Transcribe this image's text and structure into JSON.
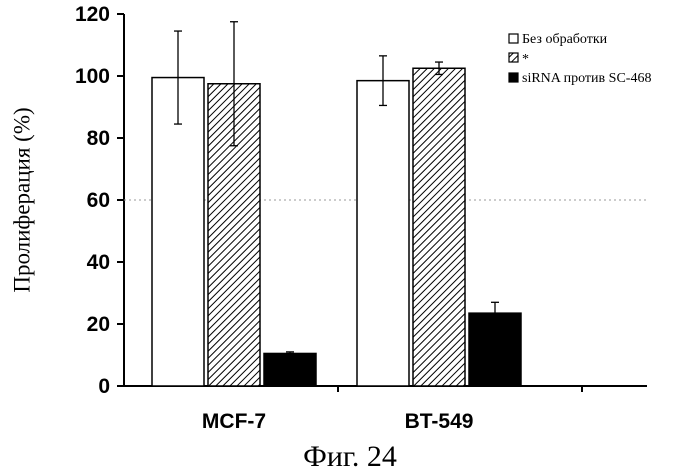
{
  "chart_data": {
    "type": "bar",
    "categories": [
      "MCF-7",
      "BT-549"
    ],
    "series": [
      {
        "name": "Без обработки",
        "values": [
          99.5,
          98.5
        ],
        "errors": [
          15,
          8
        ],
        "fill": "white"
      },
      {
        "name": "*",
        "values": [
          97.5,
          102.5
        ],
        "errors": [
          20,
          2
        ],
        "fill": "hatch"
      },
      {
        "name": "siRNA против SC-468",
        "values": [
          10.5,
          23.5
        ],
        "errors": [
          0.5,
          3.5
        ],
        "fill": "#000000"
      }
    ],
    "ylabel": "Пролиферация (%)",
    "ylim": [
      0,
      120
    ],
    "yticks": [
      "0",
      "20",
      "40",
      "60",
      "80",
      "100",
      "120"
    ],
    "grid": "dotted horizontal at 60",
    "legend_position": "top-right"
  },
  "caption": "Фиг. 24"
}
